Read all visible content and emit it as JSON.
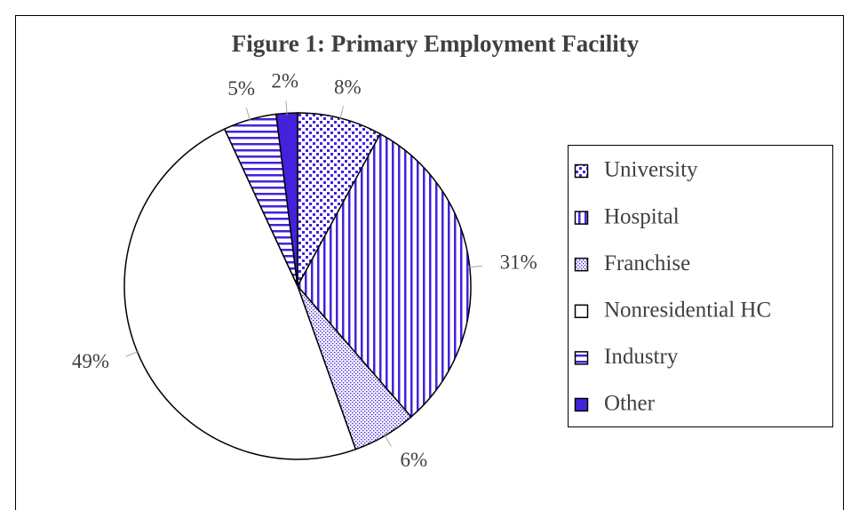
{
  "chart_data": {
    "type": "pie",
    "title": "Figure 1: Primary Employment Facility",
    "categories": [
      "University",
      "Hospital",
      "Franchise",
      "Nonresidential HC",
      "Industry",
      "Other"
    ],
    "values": [
      8,
      31,
      6,
      49,
      5,
      2
    ],
    "value_labels": [
      "8%",
      "31%",
      "6%",
      "49%",
      "5%",
      "2%"
    ],
    "color": "#4422dd",
    "patterns": [
      "checker",
      "vertical",
      "dots",
      "none",
      "horizontal",
      "solid"
    ],
    "legend": "right"
  }
}
